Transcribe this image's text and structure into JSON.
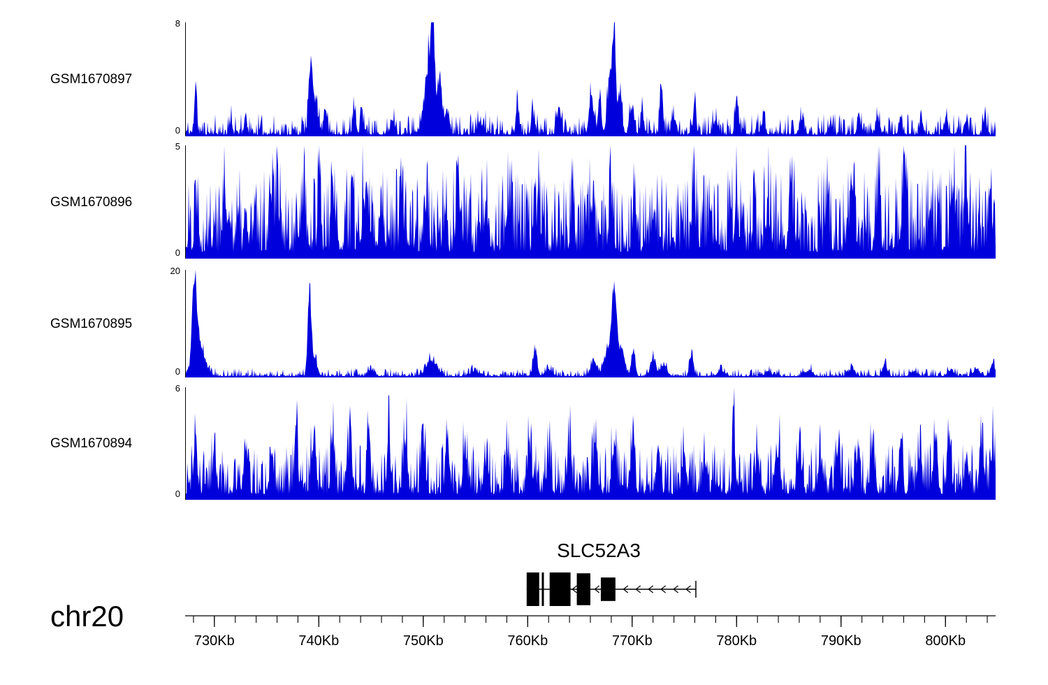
{
  "colors": {
    "signal": "#0000dd",
    "axis": "#000000"
  },
  "axis": {
    "chrom_label": "chr20",
    "range_kb": [
      727.2,
      804.8
    ],
    "minor_step_kb": 2,
    "major_ticks": [
      {
        "kb": 730,
        "label": "730Kb"
      },
      {
        "kb": 740,
        "label": "740Kb"
      },
      {
        "kb": 750,
        "label": "750Kb"
      },
      {
        "kb": 760,
        "label": "760Kb"
      },
      {
        "kb": 770,
        "label": "770Kb"
      },
      {
        "kb": 780,
        "label": "780Kb"
      },
      {
        "kb": 790,
        "label": "790Kb"
      },
      {
        "kb": 800,
        "label": "800Kb"
      }
    ]
  },
  "gene": {
    "name": "SLC52A3",
    "strand": "-",
    "span_kb": [
      759.9,
      776.1
    ],
    "exons": [
      [
        759.9,
        761.1,
        1.0
      ],
      [
        761.35,
        761.55,
        1.0
      ],
      [
        762.1,
        764.1,
        1.0
      ],
      [
        764.7,
        766.0,
        0.95
      ],
      [
        767.0,
        768.4,
        0.7
      ]
    ],
    "arrows_kb": [
      764.4,
      766.55,
      769.3,
      770.5,
      771.7,
      772.9,
      774.1,
      775.3
    ]
  },
  "chart_data": [
    {
      "type": "area",
      "name": "GSM1670897",
      "ylim": [
        0,
        8
      ],
      "x_unit": "Kb",
      "x_range": [
        727.2,
        804.8
      ],
      "noise": {
        "base": 0.12,
        "var": 1.5,
        "pow": 3.2,
        "seed": 11
      },
      "peaks": [
        [
          728.2,
          4.0,
          0.12
        ],
        [
          731.6,
          1.4,
          0.1
        ],
        [
          733.0,
          1.6,
          0.12
        ],
        [
          739.2,
          5.0,
          0.18
        ],
        [
          739.6,
          2.5,
          0.3
        ],
        [
          740.6,
          2.4,
          0.12
        ],
        [
          743.4,
          2.3,
          0.15
        ],
        [
          744.1,
          1.9,
          0.12
        ],
        [
          747.0,
          1.4,
          0.15
        ],
        [
          750.6,
          6.2,
          0.45
        ],
        [
          750.9,
          7.4,
          0.15
        ],
        [
          751.6,
          4.2,
          0.2
        ],
        [
          752.3,
          2.0,
          0.2
        ],
        [
          755.5,
          0.9,
          0.3
        ],
        [
          759.0,
          2.9,
          0.12
        ],
        [
          760.5,
          1.8,
          0.15
        ],
        [
          763.0,
          1.5,
          0.2
        ],
        [
          766.1,
          3.3,
          0.2
        ],
        [
          766.9,
          3.1,
          0.15
        ],
        [
          767.9,
          4.5,
          0.25
        ],
        [
          768.3,
          7.8,
          0.14
        ],
        [
          768.8,
          3.5,
          0.2
        ],
        [
          770.0,
          2.3,
          0.2
        ],
        [
          771.0,
          1.6,
          0.15
        ],
        [
          772.8,
          3.2,
          0.15
        ],
        [
          774.0,
          1.5,
          0.2
        ],
        [
          776.0,
          3.1,
          0.12
        ],
        [
          778.0,
          1.2,
          0.2
        ],
        [
          780.0,
          2.7,
          0.15
        ],
        [
          782.5,
          0.9,
          0.2
        ],
        [
          786.3,
          1.4,
          0.15
        ],
        [
          789.0,
          1.0,
          0.15
        ],
        [
          791.7,
          1.4,
          0.15
        ],
        [
          793.5,
          1.1,
          0.2
        ],
        [
          795.7,
          1.5,
          0.15
        ],
        [
          797.7,
          1.3,
          0.15
        ],
        [
          800.0,
          1.0,
          0.2
        ],
        [
          802.0,
          1.1,
          0.15
        ],
        [
          803.8,
          1.8,
          0.12
        ]
      ]
    },
    {
      "type": "area",
      "name": "GSM1670896",
      "ylim": [
        0,
        5
      ],
      "x_unit": "Kb",
      "x_range": [
        727.2,
        804.8
      ],
      "noise": {
        "base": 0.3,
        "var": 3.7,
        "pow": 1.9,
        "seed": 22
      },
      "peaks": [
        [
          728.3,
          2.2,
          0.15
        ],
        [
          731.0,
          1.8,
          0.2
        ],
        [
          735.4,
          3.2,
          0.15
        ],
        [
          736.0,
          2.0,
          0.2
        ],
        [
          738.5,
          2.2,
          0.2
        ],
        [
          740.0,
          3.4,
          0.12
        ],
        [
          741.5,
          2.0,
          0.2
        ],
        [
          744.3,
          2.6,
          0.15
        ],
        [
          746.0,
          1.8,
          0.2
        ],
        [
          748.0,
          1.6,
          0.2
        ],
        [
          750.2,
          1.8,
          0.2
        ],
        [
          753.3,
          2.8,
          0.15
        ],
        [
          756.0,
          2.0,
          0.2
        ],
        [
          758.2,
          1.8,
          0.2
        ],
        [
          761.0,
          1.8,
          0.2
        ],
        [
          764.3,
          3.4,
          0.12
        ],
        [
          766.2,
          2.0,
          0.2
        ],
        [
          768.0,
          1.8,
          0.2
        ],
        [
          770.2,
          2.0,
          0.2
        ],
        [
          772.0,
          1.6,
          0.2
        ],
        [
          775.9,
          3.4,
          0.12
        ],
        [
          777.5,
          2.2,
          0.15
        ],
        [
          780.0,
          1.8,
          0.2
        ],
        [
          783.0,
          1.6,
          0.2
        ],
        [
          785.2,
          2.0,
          0.2
        ],
        [
          788.7,
          2.6,
          0.15
        ],
        [
          791.0,
          2.2,
          0.2
        ],
        [
          793.6,
          2.6,
          0.15
        ],
        [
          796.0,
          1.8,
          0.2
        ],
        [
          798.5,
          1.6,
          0.2
        ],
        [
          800.8,
          2.8,
          0.15
        ],
        [
          802.0,
          2.4,
          0.2
        ],
        [
          804.3,
          3.0,
          0.15
        ]
      ]
    },
    {
      "type": "area",
      "name": "GSM1670895",
      "ylim": [
        0,
        20
      ],
      "x_unit": "Kb",
      "x_range": [
        727.2,
        804.8
      ],
      "noise": {
        "base": 0.22,
        "var": 1.5,
        "pow": 3.2,
        "seed": 33
      },
      "peaks": [
        [
          728.1,
          18.5,
          0.22
        ],
        [
          728.6,
          6.0,
          0.5
        ],
        [
          739.1,
          16.0,
          0.16
        ],
        [
          739.5,
          4.0,
          0.3
        ],
        [
          745.0,
          1.2,
          0.3
        ],
        [
          750.8,
          3.6,
          0.5
        ],
        [
          755.0,
          1.0,
          0.4
        ],
        [
          760.7,
          5.5,
          0.2
        ],
        [
          762.0,
          1.5,
          0.3
        ],
        [
          766.3,
          3.5,
          0.25
        ],
        [
          767.9,
          6.0,
          0.5
        ],
        [
          768.3,
          14.5,
          0.22
        ],
        [
          769.0,
          5.0,
          0.3
        ],
        [
          770.1,
          5.5,
          0.18
        ],
        [
          772.0,
          4.0,
          0.25
        ],
        [
          773.0,
          2.5,
          0.3
        ],
        [
          775.7,
          4.5,
          0.18
        ],
        [
          778.5,
          1.2,
          0.3
        ],
        [
          783.0,
          1.0,
          0.3
        ],
        [
          787.0,
          1.2,
          0.3
        ],
        [
          791.0,
          1.8,
          0.25
        ],
        [
          794.2,
          3.2,
          0.2
        ],
        [
          797.0,
          1.0,
          0.3
        ],
        [
          800.5,
          1.2,
          0.3
        ],
        [
          803.0,
          1.4,
          0.3
        ],
        [
          804.5,
          2.8,
          0.2
        ]
      ]
    },
    {
      "type": "area",
      "name": "GSM1670894",
      "ylim": [
        0,
        6
      ],
      "x_unit": "Kb",
      "x_range": [
        727.2,
        804.8
      ],
      "noise": {
        "base": 0.3,
        "var": 2.7,
        "pow": 2.2,
        "seed": 44
      },
      "peaks": [
        [
          728.2,
          3.0,
          0.15
        ],
        [
          730.0,
          1.6,
          0.2
        ],
        [
          733.0,
          2.2,
          0.2
        ],
        [
          735.5,
          1.8,
          0.2
        ],
        [
          737.8,
          3.6,
          0.15
        ],
        [
          739.5,
          3.0,
          0.2
        ],
        [
          741.3,
          3.6,
          0.15
        ],
        [
          743.0,
          2.6,
          0.2
        ],
        [
          744.8,
          3.8,
          0.15
        ],
        [
          746.7,
          3.8,
          0.15
        ],
        [
          748.3,
          3.2,
          0.18
        ],
        [
          750.0,
          2.2,
          0.2
        ],
        [
          752.3,
          2.6,
          0.2
        ],
        [
          754.0,
          2.2,
          0.2
        ],
        [
          756.0,
          2.0,
          0.2
        ],
        [
          758.0,
          1.8,
          0.2
        ],
        [
          760.2,
          2.4,
          0.2
        ],
        [
          762.0,
          2.0,
          0.2
        ],
        [
          764.0,
          2.4,
          0.2
        ],
        [
          766.5,
          3.2,
          0.18
        ],
        [
          768.3,
          3.0,
          0.2
        ],
        [
          770.0,
          2.2,
          0.2
        ],
        [
          772.5,
          2.4,
          0.2
        ],
        [
          775.0,
          2.2,
          0.2
        ],
        [
          777.0,
          2.0,
          0.2
        ],
        [
          779.7,
          5.4,
          0.1
        ],
        [
          782.0,
          2.2,
          0.2
        ],
        [
          784.0,
          2.0,
          0.2
        ],
        [
          786.0,
          2.4,
          0.2
        ],
        [
          788.0,
          2.0,
          0.2
        ],
        [
          789.7,
          2.2,
          0.2
        ],
        [
          791.5,
          2.0,
          0.2
        ],
        [
          793.0,
          2.4,
          0.2
        ],
        [
          795.7,
          3.4,
          0.15
        ],
        [
          797.5,
          2.2,
          0.2
        ],
        [
          799.0,
          2.8,
          0.2
        ],
        [
          800.3,
          3.0,
          0.15
        ],
        [
          802.0,
          2.2,
          0.2
        ],
        [
          803.5,
          2.6,
          0.2
        ],
        [
          804.5,
          2.8,
          0.15
        ]
      ]
    }
  ]
}
